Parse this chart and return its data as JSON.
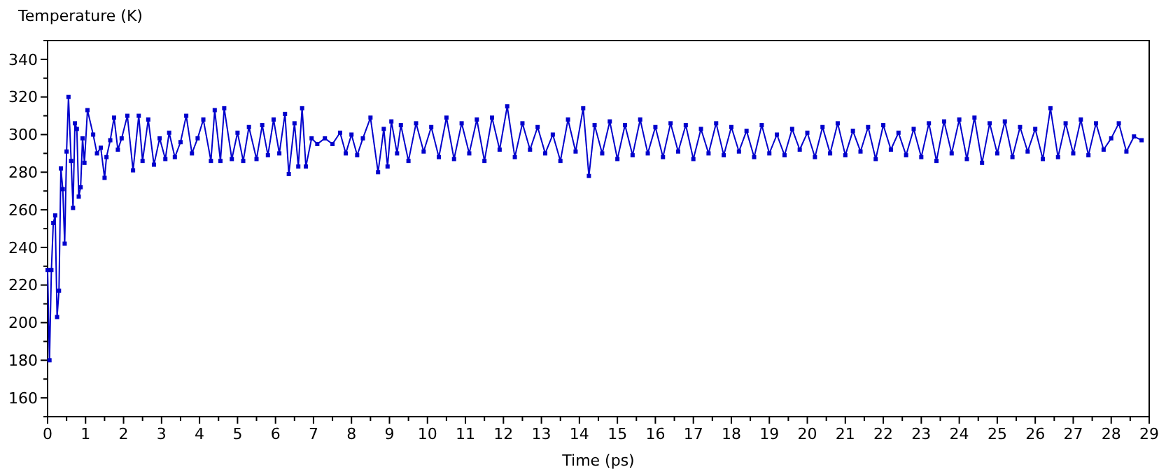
{
  "chart_data": {
    "type": "line",
    "ylabel": "Temperature (K)",
    "xlabel": "Time (ps)",
    "xlim": [
      0,
      29
    ],
    "ylim": [
      150,
      350
    ],
    "xticks": [
      0,
      {
        "value": 0.5,
        "label": null
      },
      1,
      {
        "value": 1.5,
        "label": null
      },
      2,
      {
        "value": 2.5,
        "label": null
      },
      3,
      {
        "value": 3.5,
        "label": null
      },
      4,
      {
        "value": 4.5,
        "label": null
      },
      5,
      {
        "value": 5.5,
        "label": null
      },
      6,
      {
        "value": 6.5,
        "label": null
      },
      7,
      {
        "value": 7.5,
        "label": null
      },
      8,
      {
        "value": 8.5,
        "label": null
      },
      9,
      {
        "value": 9.5,
        "label": null
      },
      10,
      {
        "value": 10.5,
        "label": null
      },
      11,
      {
        "value": 11.5,
        "label": null
      },
      12,
      {
        "value": 12.5,
        "label": null
      },
      13,
      {
        "value": 13.5,
        "label": null
      },
      14,
      {
        "value": 14.5,
        "label": null
      },
      15,
      {
        "value": 15.5,
        "label": null
      },
      16,
      {
        "value": 16.5,
        "label": null
      },
      17,
      {
        "value": 17.5,
        "label": null
      },
      18,
      {
        "value": 18.5,
        "label": null
      },
      19,
      {
        "value": 19.5,
        "label": null
      },
      20,
      {
        "value": 20.5,
        "label": null
      },
      21,
      {
        "value": 21.5,
        "label": null
      },
      22,
      {
        "value": 22.5,
        "label": null
      },
      23,
      {
        "value": 23.5,
        "label": null
      },
      24,
      {
        "value": 24.5,
        "label": null
      },
      25,
      {
        "value": 25.5,
        "label": null
      },
      26,
      {
        "value": 26.5,
        "label": null
      },
      27,
      {
        "value": 27.5,
        "label": null
      },
      28,
      {
        "value": 28.5,
        "label": null
      },
      29
    ],
    "yticks": [
      {
        "value": 150,
        "label": null
      },
      160,
      {
        "value": 170,
        "label": null
      },
      180,
      {
        "value": 190,
        "label": null
      },
      200,
      {
        "value": 210,
        "label": null
      },
      220,
      {
        "value": 230,
        "label": null
      },
      240,
      {
        "value": 250,
        "label": null
      },
      260,
      {
        "value": 270,
        "label": null
      },
      280,
      {
        "value": 290,
        "label": null
      },
      300,
      {
        "value": 310,
        "label": null
      },
      320,
      {
        "value": 330,
        "label": null
      },
      340,
      {
        "value": 350,
        "label": null
      }
    ],
    "marker": "square",
    "grid": false,
    "series": [
      {
        "color": "#0000cc",
        "x": [
          0,
          0.05,
          0.1,
          0.15,
          0.2,
          0.25,
          0.3,
          0.35,
          0.4,
          0.45,
          0.5,
          0.55,
          0.62,
          0.67,
          0.72,
          0.77,
          0.82,
          0.87,
          0.92,
          0.97,
          1.05,
          1.2,
          1.3,
          1.4,
          1.5,
          1.55,
          1.65,
          1.75,
          1.85,
          1.95,
          2.1,
          2.25,
          2.4,
          2.5,
          2.65,
          2.8,
          2.95,
          3.1,
          3.2,
          3.35,
          3.5,
          3.65,
          3.8,
          3.95,
          4.1,
          4.3,
          4.4,
          4.55,
          4.65,
          4.85,
          5.0,
          5.15,
          5.3,
          5.5,
          5.65,
          5.8,
          5.95,
          6.1,
          6.25,
          6.35,
          6.5,
          6.6,
          6.7,
          6.8,
          6.95,
          7.1,
          7.3,
          7.5,
          7.7,
          7.85,
          8.0,
          8.15,
          8.3,
          8.5,
          8.7,
          8.85,
          8.95,
          9.05,
          9.2,
          9.3,
          9.5,
          9.7,
          9.9,
          10.1,
          10.3,
          10.5,
          10.7,
          10.9,
          11.1,
          11.3,
          11.5,
          11.7,
          11.9,
          12.1,
          12.3,
          12.5,
          12.7,
          12.9,
          13.1,
          13.3,
          13.5,
          13.7,
          13.9,
          14.1,
          14.25,
          14.4,
          14.6,
          14.8,
          15.0,
          15.2,
          15.4,
          15.6,
          15.8,
          16.0,
          16.2,
          16.4,
          16.6,
          16.8,
          17.0,
          17.2,
          17.4,
          17.6,
          17.8,
          18.0,
          18.2,
          18.4,
          18.6,
          18.8,
          19.0,
          19.2,
          19.4,
          19.6,
          19.8,
          20.0,
          20.2,
          20.4,
          20.6,
          20.8,
          21.0,
          21.2,
          21.4,
          21.6,
          21.8,
          22.0,
          22.2,
          22.4,
          22.6,
          22.8,
          23.0,
          23.2,
          23.4,
          23.6,
          23.8,
          24.0,
          24.2,
          24.4,
          24.6,
          24.8,
          25.0,
          25.2,
          25.4,
          25.6,
          25.8,
          26.0,
          26.2,
          26.4,
          26.6,
          26.8,
          27.0,
          27.2,
          27.4,
          27.6,
          27.8,
          28.0,
          28.2,
          28.4,
          28.6,
          28.8
        ],
        "values": [
          228,
          180,
          228,
          253,
          257,
          203,
          217,
          282,
          271,
          242,
          291,
          320,
          286,
          261,
          306,
          303,
          267,
          272,
          298,
          285,
          313,
          300,
          290,
          293,
          277,
          288,
          297,
          309,
          292,
          298,
          310,
          281,
          310,
          286,
          308,
          284,
          298,
          287,
          301,
          288,
          296,
          310,
          290,
          298,
          308,
          286,
          313,
          286,
          314,
          287,
          301,
          286,
          304,
          287,
          305,
          289,
          308,
          290,
          311,
          279,
          306,
          283,
          314,
          283,
          298,
          295,
          298,
          295,
          301,
          290,
          300,
          289,
          298,
          309,
          280,
          303,
          283,
          307,
          290,
          305,
          286,
          306,
          291,
          304,
          288,
          309,
          287,
          306,
          290,
          308,
          286,
          309,
          292,
          315,
          288,
          306,
          292,
          304,
          290,
          300,
          286,
          308,
          291,
          314,
          278,
          305,
          290,
          307,
          287,
          305,
          289,
          308,
          290,
          304,
          288,
          306,
          291,
          305,
          287,
          303,
          290,
          306,
          289,
          304,
          291,
          302,
          288,
          305,
          290,
          300,
          289,
          303,
          292,
          301,
          288,
          304,
          290,
          306,
          289,
          302,
          291,
          304,
          287,
          305,
          292,
          301,
          289,
          303,
          288,
          306,
          286,
          307,
          290,
          308,
          287,
          309,
          285,
          306,
          290,
          307,
          288,
          304,
          291,
          303,
          287,
          314,
          288,
          306,
          290,
          308,
          289,
          306,
          292,
          298,
          306,
          291,
          299,
          297
        ]
      }
    ]
  }
}
